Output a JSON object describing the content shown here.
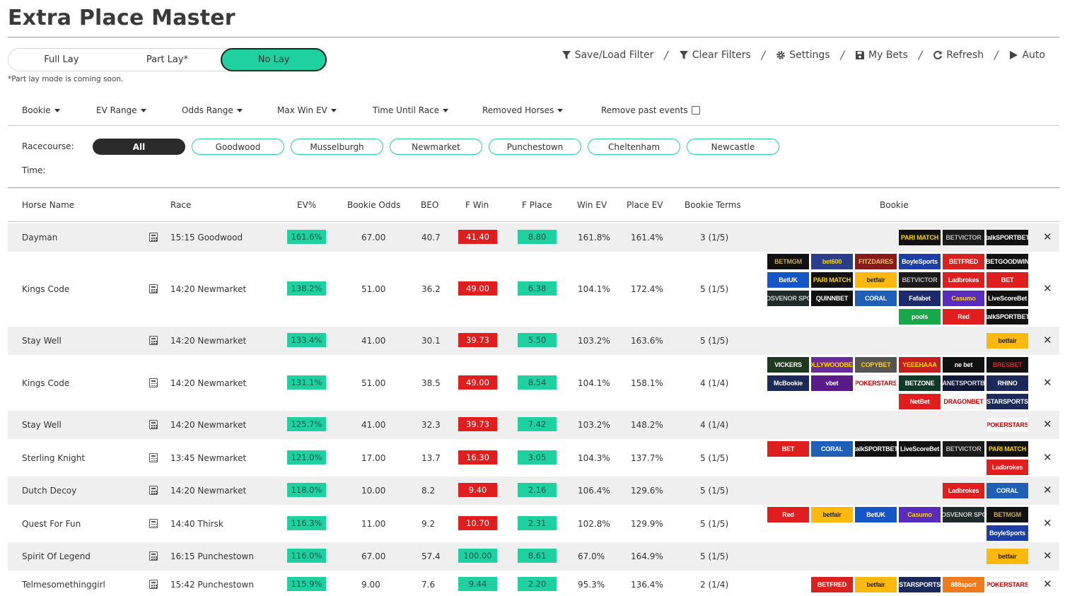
{
  "title": "Extra Place Master",
  "modes": [
    {
      "label": "Full Lay",
      "active": false
    },
    {
      "label": "Part Lay*",
      "active": false
    },
    {
      "label": "No Lay",
      "active": true
    }
  ],
  "mode_note": "*Part lay mode is coming soon.",
  "toolbar": [
    {
      "label": "Save/Load Filter",
      "icon": "filter-icon"
    },
    {
      "label": "Clear Filters",
      "icon": "filter-icon"
    },
    {
      "label": "Settings",
      "icon": "gear-icon"
    },
    {
      "label": "My Bets",
      "icon": "save-icon"
    },
    {
      "label": "Refresh",
      "icon": "refresh-icon"
    },
    {
      "label": "Auto",
      "icon": "play-icon"
    }
  ],
  "filters": [
    "Bookie",
    "EV Range",
    "Odds Range",
    "Max Win EV",
    "Time Until Race",
    "Removed Horses"
  ],
  "remove_past_label": "Remove past events",
  "racecourse_label": "Racecourse:",
  "time_label": "Time:",
  "racecourses": [
    {
      "label": "All",
      "active": true
    },
    {
      "label": "Goodwood",
      "active": false
    },
    {
      "label": "Musselburgh",
      "active": false
    },
    {
      "label": "Newmarket",
      "active": false
    },
    {
      "label": "Punchestown",
      "active": false
    },
    {
      "label": "Cheltenham",
      "active": false
    },
    {
      "label": "Newcastle",
      "active": false
    }
  ],
  "columns": {
    "horse": "Horse Name",
    "race": "Race",
    "ev": "EV%",
    "odds": "Bookie Odds",
    "beo": "BEO",
    "fwin": "F Win",
    "fplace": "F Place",
    "winev": "Win EV",
    "placeev": "Place EV",
    "terms": "Bookie Terms",
    "bookie": "Bookie"
  },
  "colors": {
    "accent": "#1fd0a0",
    "red": "#e01e1e",
    "dark": "#2b2b2b"
  },
  "bookie_logos": {
    "parimatch": {
      "text": "PARI MATCH",
      "bg": "#111111",
      "fg": "#ffd400"
    },
    "betvictor": {
      "text": "BETVICTOR",
      "bg": "#1b1b1b",
      "fg": "#bbbbbb"
    },
    "talksport": {
      "text": "talkSPORTBET",
      "bg": "#111111",
      "fg": "#ffffff"
    },
    "betmgm": {
      "text": "BETMGM",
      "bg": "#111111",
      "fg": "#c9a85c"
    },
    "bet600": {
      "text": "bet600",
      "bg": "#2a3e8c",
      "fg": "#ffd400"
    },
    "fitzdares": {
      "text": "FITZDARES",
      "bg": "#8a1a1a",
      "fg": "#e6c36a"
    },
    "boylesports": {
      "text": "BoyleSports",
      "bg": "#1b3fa6",
      "fg": "#ffffff"
    },
    "betfred": {
      "text": "BETFRED",
      "bg": "#d9211e",
      "fg": "#ffffff"
    },
    "betgoodwin": {
      "text": "BETGOODWIN",
      "bg": "#111111",
      "fg": "#ffffff"
    },
    "betuk": {
      "text": "BetUK",
      "bg": "#1456c8",
      "fg": "#ffffff"
    },
    "betfair": {
      "text": "betfair",
      "bg": "#ffb80c",
      "fg": "#222222"
    },
    "ladbrokes": {
      "text": "Ladbrokes",
      "bg": "#e01e1e",
      "fg": "#ffffff"
    },
    "virginbet": {
      "text": "BET",
      "bg": "#e01e1e",
      "fg": "#ffffff"
    },
    "grosvenor": {
      "text": "GROSVENOR SPORT",
      "bg": "#1f2a2a",
      "fg": "#cccccc"
    },
    "quinnbet": {
      "text": "QUINNBET",
      "bg": "#111111",
      "fg": "#ffffff"
    },
    "coral": {
      "text": "CORAL",
      "bg": "#1e5fb8",
      "fg": "#ffffff"
    },
    "fafabet": {
      "text": "Fafabet",
      "bg": "#1c2b6e",
      "fg": "#ffffff"
    },
    "casumo": {
      "text": "Casumo",
      "bg": "#5a2bbf",
      "fg": "#ffd400"
    },
    "livescore": {
      "text": "LiveScoreBet",
      "bg": "#111111",
      "fg": "#ffffff"
    },
    "pools": {
      "text": "pools",
      "bg": "#18a84a",
      "fg": "#ffffff"
    },
    "red": {
      "text": "Red",
      "bg": "#e01e1e",
      "fg": "#ffffff"
    },
    "vickers": {
      "text": "VICKERS",
      "bg": "#1e3a1e",
      "fg": "#ffffff"
    },
    "hollywood": {
      "text": "HOLLYWOODBETS",
      "bg": "#6b2a9a",
      "fg": "#ffd400"
    },
    "copybet": {
      "text": "COPYBET",
      "bg": "#555555",
      "fg": "#ffd400"
    },
    "yeeehaaa": {
      "text": "YEEEHAAA",
      "bg": "#c41e1e",
      "fg": "#ffd400"
    },
    "nextbet": {
      "text": "ne bet",
      "bg": "#111111",
      "fg": "#ffffff"
    },
    "bresbet": {
      "text": "BRESBET",
      "bg": "#111111",
      "fg": "#e02020"
    },
    "mcbookie": {
      "text": "McBookie",
      "bg": "#1b2a5a",
      "fg": "#ffffff"
    },
    "vbet": {
      "text": "vbet",
      "bg": "#5a1a8a",
      "fg": "#ffffff"
    },
    "pokerstars": {
      "text": "POKERSTARS",
      "bg": "#ffffff",
      "fg": "#c00000"
    },
    "betzone": {
      "text": "BETZONE",
      "bg": "#0f3a2a",
      "fg": "#ffffff"
    },
    "planetsport": {
      "text": "PLANETSPORTBET",
      "bg": "#0f1a3a",
      "fg": "#dddddd"
    },
    "rhino": {
      "text": "RHINO",
      "bg": "#1b2a5a",
      "fg": "#ffffff"
    },
    "netbet": {
      "text": "NetBet",
      "bg": "#e01e1e",
      "fg": "#ffffff"
    },
    "dragonbet": {
      "text": "DRAGONBET",
      "bg": "#ffffff",
      "fg": "#c00000"
    },
    "starsports": {
      "text": "STARSPORTS",
      "bg": "#1b2a5a",
      "fg": "#ffffff"
    },
    "888sport": {
      "text": "888sport",
      "bg": "#f07a1e",
      "fg": "#ffffff"
    }
  },
  "rows": [
    {
      "horse": "Dayman",
      "race": "15:15 Goodwood",
      "ev": "161.6%",
      "odds": "67.00",
      "beo": "40.7",
      "fwin": "41.40",
      "fwin_green": false,
      "fplace": "8.80",
      "winev": "161.8%",
      "placeev": "161.4%",
      "terms": "3 (1/5)",
      "bookies": [
        [
          "parimatch",
          "betvictor",
          "talksport"
        ]
      ]
    },
    {
      "horse": "Kings Code",
      "race": "14:20 Newmarket",
      "ev": "138.2%",
      "odds": "51.00",
      "beo": "36.2",
      "fwin": "49.00",
      "fwin_green": false,
      "fplace": "6.38",
      "winev": "104.1%",
      "placeev": "172.4%",
      "terms": "5 (1/5)",
      "bookies": [
        [
          "betmgm",
          "bet600",
          "fitzdares",
          "boylesports",
          "betfred",
          "betgoodwin"
        ],
        [
          "betuk",
          "parimatch",
          "betfair",
          "betvictor",
          "ladbrokes",
          "virginbet"
        ],
        [
          "grosvenor",
          "quinnbet",
          "coral",
          "fafabet",
          "casumo",
          "livescore"
        ],
        [
          "pools",
          "red",
          "talksport"
        ]
      ]
    },
    {
      "horse": "Stay Well",
      "race": "14:20 Newmarket",
      "ev": "133.4%",
      "odds": "41.00",
      "beo": "30.1",
      "fwin": "39.73",
      "fwin_green": false,
      "fplace": "5.50",
      "winev": "103.2%",
      "placeev": "163.6%",
      "terms": "5 (1/5)",
      "bookies": [
        [
          "betfair"
        ]
      ]
    },
    {
      "horse": "Kings Code",
      "race": "14:20 Newmarket",
      "ev": "131.1%",
      "odds": "51.00",
      "beo": "38.5",
      "fwin": "49.00",
      "fwin_green": false,
      "fplace": "8.54",
      "winev": "104.1%",
      "placeev": "158.1%",
      "terms": "4 (1/4)",
      "bookies": [
        [
          "vickers",
          "hollywood",
          "copybet",
          "yeeehaaa",
          "nextbet",
          "bresbet"
        ],
        [
          "mcbookie",
          "vbet",
          "pokerstars",
          "betzone",
          "planetsport",
          "rhino"
        ],
        [
          "netbet",
          "dragonbet",
          "starsports"
        ]
      ]
    },
    {
      "horse": "Stay Well",
      "race": "14:20 Newmarket",
      "ev": "125.7%",
      "odds": "41.00",
      "beo": "32.3",
      "fwin": "39.73",
      "fwin_green": false,
      "fplace": "7.42",
      "winev": "103.2%",
      "placeev": "148.2%",
      "terms": "4 (1/4)",
      "bookies": [
        [
          "pokerstars"
        ]
      ]
    },
    {
      "horse": "Sterling Knight",
      "race": "13:45 Newmarket",
      "ev": "121.0%",
      "odds": "17.00",
      "beo": "13.7",
      "fwin": "16.30",
      "fwin_green": false,
      "fplace": "3.05",
      "winev": "104.3%",
      "placeev": "137.7%",
      "terms": "5 (1/5)",
      "bookies": [
        [
          "virginbet",
          "coral",
          "talksport",
          "livescore",
          "betvictor",
          "parimatch"
        ],
        [
          "ladbrokes"
        ]
      ]
    },
    {
      "horse": "Dutch Decoy",
      "race": "14:20 Newmarket",
      "ev": "118.0%",
      "odds": "10.00",
      "beo": "8.2",
      "fwin": "9.40",
      "fwin_green": false,
      "fplace": "2.16",
      "winev": "106.4%",
      "placeev": "129.6%",
      "terms": "5 (1/5)",
      "bookies": [
        [
          "ladbrokes",
          "coral"
        ]
      ]
    },
    {
      "horse": "Quest For Fun",
      "race": "14:40 Thirsk",
      "ev": "116.3%",
      "odds": "11.00",
      "beo": "9.2",
      "fwin": "10.70",
      "fwin_green": false,
      "fplace": "2.31",
      "winev": "102.8%",
      "placeev": "129.9%",
      "terms": "5 (1/5)",
      "bookies": [
        [
          "red",
          "betfair",
          "betuk",
          "casumo",
          "grosvenor",
          "betmgm"
        ],
        [
          "boylesports"
        ]
      ]
    },
    {
      "horse": "Spirit Of Legend",
      "race": "16:15 Punchestown",
      "ev": "116.0%",
      "odds": "67.00",
      "beo": "57.4",
      "fwin": "100.00",
      "fwin_green": true,
      "fplace": "8.61",
      "winev": "67.0%",
      "placeev": "164.9%",
      "terms": "5 (1/5)",
      "bookies": [
        [
          "betfair"
        ]
      ]
    },
    {
      "horse": "Telmesomethinggirl",
      "race": "15:42 Punchestown",
      "ev": "115.9%",
      "odds": "9.00",
      "beo": "7.6",
      "fwin": "9.44",
      "fwin_green": true,
      "fplace": "2.20",
      "winev": "95.3%",
      "placeev": "136.4%",
      "terms": "2 (1/4)",
      "bookies": [
        [
          "betfred",
          "betfair",
          "starsports",
          "888sport",
          "pokerstars"
        ]
      ]
    }
  ]
}
